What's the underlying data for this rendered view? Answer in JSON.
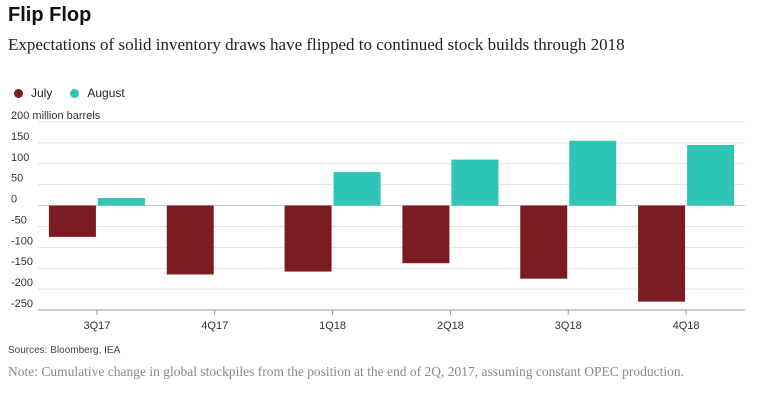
{
  "header": {
    "title": "Flip Flop",
    "subtitle": "Expectations of solid inventory draws have flipped to continued stock builds through 2018"
  },
  "footer": {
    "source": "Sources: Bloomberg, IEA",
    "note": "Note: Cumulative change in global stockpiles from the position at the end of 2Q, 2017, assuming constant OPEC production."
  },
  "colors": {
    "july": "#7b1c22",
    "august": "#2ec4b6",
    "grid": "#e3e3e3",
    "axis_text": "#333333"
  },
  "chart_data": {
    "type": "bar",
    "title": "Flip Flop",
    "subtitle": "Expectations of solid inventory draws have flipped to continued stock builds through 2018",
    "ylabel": "million barrels",
    "categories": [
      "3Q17",
      "4Q17",
      "1Q18",
      "2Q18",
      "3Q18",
      "4Q18"
    ],
    "series": [
      {
        "name": "July",
        "values": [
          -75,
          -165,
          -158,
          -138,
          -175,
          -230
        ]
      },
      {
        "name": "August",
        "values": [
          18,
          0,
          80,
          110,
          155,
          145
        ]
      }
    ],
    "ylim": [
      -250,
      200
    ],
    "yticks": [
      200,
      150,
      100,
      50,
      0,
      -50,
      -100,
      -150,
      -200,
      -250
    ],
    "ytick_labels": [
      "200 million barrels",
      "150",
      "100",
      "50",
      "0",
      "-50",
      "-100",
      "-150",
      "-200",
      "-250"
    ],
    "grid": true,
    "legend_position": "top-left"
  }
}
